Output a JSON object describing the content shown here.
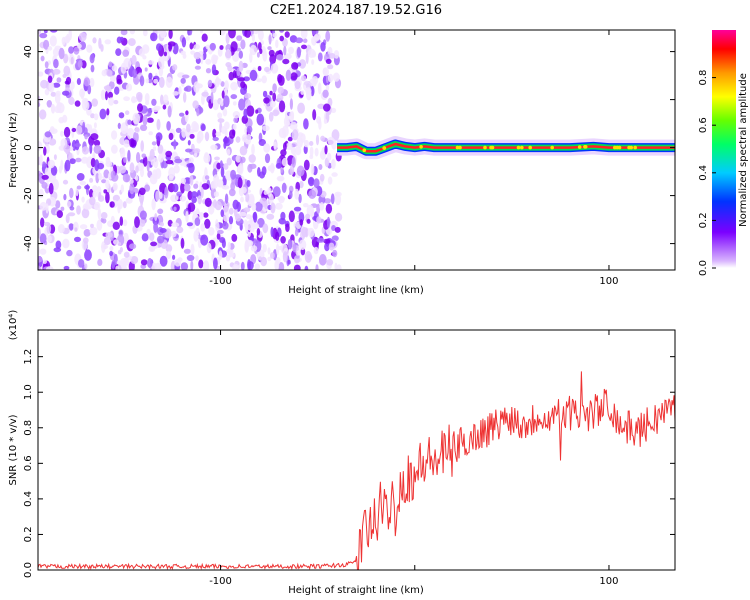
{
  "title": "C2E1.2024.187.19.52.G16",
  "chart_data": [
    {
      "type": "heatmap",
      "xlabel": "Height of straight line (km)",
      "ylabel": "Frequency (Hz)",
      "xlim": [
        -194,
        134
      ],
      "ylim": [
        -51,
        49
      ],
      "xticks": [
        -100,
        0,
        100
      ],
      "xtick_labels": [
        "-100",
        "",
        "100"
      ],
      "yticks": [
        -40,
        -20,
        0,
        20,
        40
      ],
      "ytick_labels": [
        "-40",
        "-20",
        "0",
        "20",
        "40"
      ],
      "colorbar": {
        "label": "Normalized spectral amplitude",
        "range": [
          0,
          1
        ],
        "ticks": [
          0.0,
          0.2,
          0.4,
          0.6,
          0.8
        ],
        "tick_labels": [
          "0.0",
          "0.2",
          "0.4",
          "0.6",
          "0.8"
        ]
      },
      "noise_region_x": [
        -194,
        -39
      ],
      "signal_band": {
        "x": [
          -40,
          -35,
          -30,
          -25,
          -20,
          -15,
          -10,
          -5,
          0,
          5,
          10,
          20,
          40,
          60,
          80,
          92,
          100,
          134
        ],
        "frequency": [
          0,
          0,
          0.5,
          -1.5,
          -1.5,
          0,
          1.5,
          0.5,
          0,
          0.5,
          0,
          0,
          0,
          0,
          0,
          0.5,
          0,
          0
        ]
      },
      "grid": false
    },
    {
      "type": "line",
      "xlabel": "Height of straight line (km)",
      "ylabel": "SNR (10 * v/v)",
      "y_multiplier": "(x10⁴)",
      "xlim": [
        -194,
        134
      ],
      "ylim": [
        0,
        1.35
      ],
      "xticks": [
        -100,
        0,
        100
      ],
      "xtick_labels": [
        "-100",
        "",
        "100"
      ],
      "yticks": [
        0.0,
        0.2,
        0.4,
        0.6,
        0.8,
        1.0,
        1.2
      ],
      "ytick_labels": [
        "0.0",
        "0.2",
        "0.4",
        "0.6",
        "0.8",
        "1.0",
        "1.2"
      ],
      "series": [
        {
          "color": "#ee3333",
          "x": [
            -194,
            -170,
            -150,
            -130,
            -110,
            -90,
            -70,
            -50,
            -35,
            -30,
            -27,
            -25,
            -22,
            -20,
            -17,
            -15,
            -12,
            -10,
            -8,
            -5,
            -2,
            0,
            3,
            5,
            8,
            10,
            15,
            20,
            25,
            30,
            35,
            40,
            45,
            50,
            55,
            60,
            65,
            70,
            75,
            80,
            85,
            90,
            95,
            100,
            105,
            110,
            115,
            120,
            125,
            130,
            134
          ],
          "values": [
            0.02,
            0.02,
            0.02,
            0.02,
            0.02,
            0.02,
            0.02,
            0.02,
            0.03,
            0.05,
            0.15,
            0.25,
            0.22,
            0.3,
            0.35,
            0.3,
            0.4,
            0.35,
            0.45,
            0.5,
            0.55,
            0.52,
            0.58,
            0.62,
            0.6,
            0.62,
            0.64,
            0.68,
            0.72,
            0.74,
            0.78,
            0.8,
            0.84,
            0.86,
            0.82,
            0.84,
            0.88,
            0.85,
            0.9,
            0.88,
            0.86,
            0.88,
            0.9,
            0.95,
            0.82,
            0.8,
            0.78,
            0.82,
            0.86,
            0.9,
            0.92
          ]
        }
      ],
      "grid": false
    }
  ]
}
